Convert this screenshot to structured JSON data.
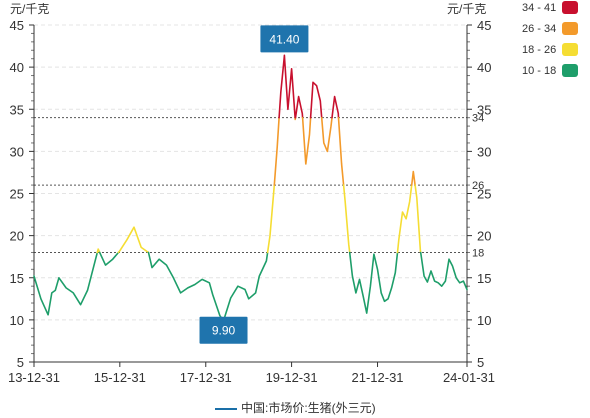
{
  "chart_data": {
    "type": "line",
    "y_unit_left": "元/千克",
    "y_unit_right": "元/千克",
    "ylim": [
      5,
      45
    ],
    "y_ticks": [
      5,
      10,
      15,
      20,
      25,
      30,
      35,
      40,
      45
    ],
    "x_ticks": [
      "13-12-31",
      "15-12-31",
      "17-12-31",
      "19-12-31",
      "21-12-31",
      "24-01-31"
    ],
    "x_range": [
      "2013-12-31",
      "2024-01-31"
    ],
    "reference_lines": [
      {
        "value": 34,
        "label": "34"
      },
      {
        "value": 26,
        "label": "26"
      },
      {
        "value": 18,
        "label": "18"
      }
    ],
    "visual_map": [
      {
        "label": "34 - 41",
        "min": 34,
        "max": 41,
        "color": "#c8102e"
      },
      {
        "label": "26 - 34",
        "min": 26,
        "max": 34,
        "color": "#f39a2b"
      },
      {
        "label": "18 - 26",
        "min": 18,
        "max": 26,
        "color": "#f5dd33"
      },
      {
        "label": "10 - 18",
        "min": 10,
        "max": 18,
        "color": "#1e9e6a"
      }
    ],
    "markers": [
      {
        "type": "max",
        "label": "41.40",
        "date": "2019-10-31",
        "value": 41.4
      },
      {
        "type": "min",
        "label": "9.90",
        "date": "2018-05-31",
        "value": 9.9
      }
    ],
    "series": [
      {
        "name": "中国:市场价:生猪(外三元)",
        "color": "#1a6fa8",
        "points": [
          [
            "2013-12-31",
            15.2
          ],
          [
            "2014-02-28",
            12.5
          ],
          [
            "2014-04-30",
            10.6
          ],
          [
            "2014-05-31",
            13.2
          ],
          [
            "2014-06-30",
            13.5
          ],
          [
            "2014-07-31",
            15.0
          ],
          [
            "2014-09-30",
            13.8
          ],
          [
            "2014-11-30",
            13.2
          ],
          [
            "2015-01-31",
            11.8
          ],
          [
            "2015-03-31",
            13.5
          ],
          [
            "2015-05-31",
            16.8
          ],
          [
            "2015-06-30",
            18.4
          ],
          [
            "2015-08-31",
            16.5
          ],
          [
            "2015-10-31",
            17.2
          ],
          [
            "2015-12-31",
            18.2
          ],
          [
            "2016-02-29",
            19.5
          ],
          [
            "2016-04-30",
            21.0
          ],
          [
            "2016-06-30",
            18.6
          ],
          [
            "2016-08-31",
            18.0
          ],
          [
            "2016-09-30",
            16.2
          ],
          [
            "2016-11-30",
            17.2
          ],
          [
            "2017-01-31",
            16.5
          ],
          [
            "2017-03-31",
            15.0
          ],
          [
            "2017-05-31",
            13.2
          ],
          [
            "2017-07-31",
            13.8
          ],
          [
            "2017-09-30",
            14.2
          ],
          [
            "2017-11-30",
            14.8
          ],
          [
            "2018-01-31",
            14.4
          ],
          [
            "2018-02-28",
            13.0
          ],
          [
            "2018-04-30",
            10.5
          ],
          [
            "2018-05-31",
            9.9
          ],
          [
            "2018-07-31",
            12.6
          ],
          [
            "2018-09-30",
            14.0
          ],
          [
            "2018-11-30",
            13.6
          ],
          [
            "2018-12-31",
            12.5
          ],
          [
            "2019-02-28",
            13.2
          ],
          [
            "2019-03-31",
            15.2
          ],
          [
            "2019-05-31",
            17.0
          ],
          [
            "2019-06-30",
            20.0
          ],
          [
            "2019-07-31",
            25.0
          ],
          [
            "2019-08-31",
            30.5
          ],
          [
            "2019-09-30",
            37.0
          ],
          [
            "2019-10-31",
            41.4
          ],
          [
            "2019-11-30",
            35.0
          ],
          [
            "2019-12-31",
            39.8
          ],
          [
            "2020-01-31",
            33.8
          ],
          [
            "2020-02-29",
            36.5
          ],
          [
            "2020-03-31",
            34.5
          ],
          [
            "2020-04-30",
            28.5
          ],
          [
            "2020-05-31",
            32.0
          ],
          [
            "2020-06-30",
            38.2
          ],
          [
            "2020-07-31",
            37.8
          ],
          [
            "2020-08-31",
            36.0
          ],
          [
            "2020-09-30",
            31.0
          ],
          [
            "2020-10-31",
            30.0
          ],
          [
            "2020-11-30",
            33.0
          ],
          [
            "2020-12-31",
            36.5
          ],
          [
            "2021-01-31",
            34.5
          ],
          [
            "2021-02-28",
            28.5
          ],
          [
            "2021-03-31",
            24.0
          ],
          [
            "2021-04-30",
            19.0
          ],
          [
            "2021-05-31",
            15.2
          ],
          [
            "2021-06-30",
            13.2
          ],
          [
            "2021-07-31",
            14.8
          ],
          [
            "2021-08-31",
            12.8
          ],
          [
            "2021-09-30",
            10.8
          ],
          [
            "2021-10-31",
            14.0
          ],
          [
            "2021-11-30",
            17.8
          ],
          [
            "2021-12-31",
            16.0
          ],
          [
            "2022-01-31",
            13.2
          ],
          [
            "2022-02-28",
            12.2
          ],
          [
            "2022-03-31",
            12.5
          ],
          [
            "2022-04-30",
            13.8
          ],
          [
            "2022-05-31",
            15.6
          ],
          [
            "2022-06-30",
            19.5
          ],
          [
            "2022-07-31",
            22.8
          ],
          [
            "2022-08-31",
            22.0
          ],
          [
            "2022-09-30",
            24.0
          ],
          [
            "2022-10-31",
            27.6
          ],
          [
            "2022-11-30",
            24.5
          ],
          [
            "2022-12-31",
            18.2
          ],
          [
            "2023-01-31",
            15.2
          ],
          [
            "2023-02-28",
            14.5
          ],
          [
            "2023-03-31",
            15.8
          ],
          [
            "2023-04-30",
            14.6
          ],
          [
            "2023-05-31",
            14.4
          ],
          [
            "2023-06-30",
            14.0
          ],
          [
            "2023-07-31",
            14.6
          ],
          [
            "2023-08-31",
            17.2
          ],
          [
            "2023-09-30",
            16.4
          ],
          [
            "2023-10-31",
            15.0
          ],
          [
            "2023-11-30",
            14.4
          ],
          [
            "2023-12-31",
            14.6
          ],
          [
            "2024-01-31",
            13.6
          ]
        ]
      }
    ]
  }
}
